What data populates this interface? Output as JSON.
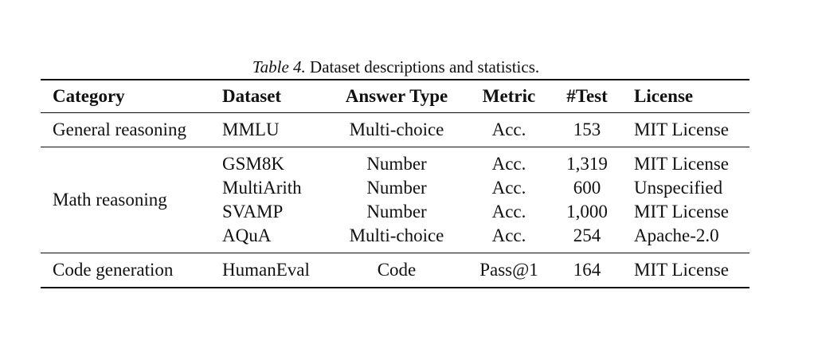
{
  "caption": {
    "label": "Table 4.",
    "text": " Dataset descriptions and statistics."
  },
  "table": {
    "headers": [
      "Category",
      "Dataset",
      "Answer Type",
      "Metric",
      "#Test",
      "License"
    ],
    "groups": [
      {
        "category": "General reasoning",
        "rows": [
          [
            "MMLU",
            "Multi-choice",
            "Acc.",
            "153",
            "MIT License"
          ]
        ]
      },
      {
        "category": "Math reasoning",
        "rows": [
          [
            "GSM8K",
            "Number",
            "Acc.",
            "1,319",
            "MIT License"
          ],
          [
            "MultiArith",
            "Number",
            "Acc.",
            "600",
            "Unspecified"
          ],
          [
            "SVAMP",
            "Number",
            "Acc.",
            "1,000",
            "MIT License"
          ],
          [
            "AQuA",
            "Multi-choice",
            "Acc.",
            "254",
            "Apache-2.0"
          ]
        ]
      },
      {
        "category": "Code generation",
        "rows": [
          [
            "HumanEval",
            "Code",
            "Pass@1",
            "164",
            "MIT License"
          ]
        ]
      }
    ]
  }
}
